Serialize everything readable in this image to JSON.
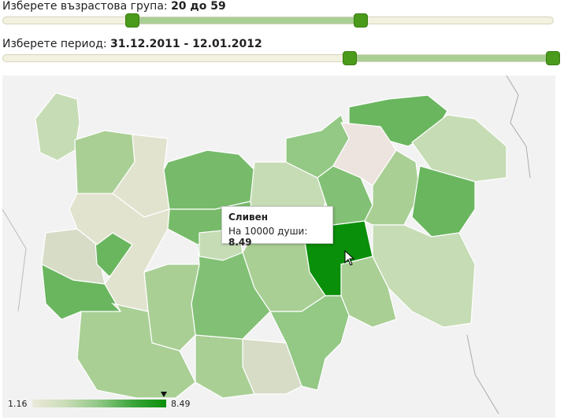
{
  "age_filter": {
    "label": "Изберете възрастова група: ",
    "value": "20 до 59",
    "range_low_fraction": 0.235,
    "range_high_fraction": 0.65
  },
  "period_filter": {
    "label": "Изберете период: ",
    "value": "31.12.2011 - 12.01.2012",
    "range_low_fraction": 0.63,
    "range_high_fraction": 1.0
  },
  "tooltip": {
    "region": "Сливен",
    "metric_label": "На 10000 души: ",
    "metric_value": "8.49"
  },
  "legend": {
    "min": "1.16",
    "max": "8.49",
    "marker_value": 8.49,
    "colors": [
      "#ece9da",
      "#0a8f0a"
    ]
  },
  "colors": {
    "map_background": "#f2f2f2",
    "slider_handle": "#4a9a1b",
    "slider_range": "#a9cf95",
    "highlight_region": "#0a8f0a"
  }
}
